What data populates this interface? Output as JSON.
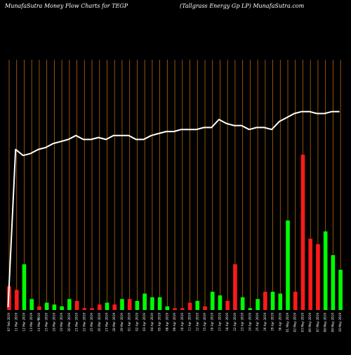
{
  "header": {
    "left": "MunafaSutra  Money Flow  Charts for TEGP",
    "right": "(Tallgrass Energy Gp LP) MunafaSutra.com"
  },
  "colors": {
    "background": "#000000",
    "grid": "#b8680e",
    "up_bar": "#00ff00",
    "down_bar": "#ff1a1a",
    "price_line": "#ffffff",
    "text": "#ffffff"
  },
  "chart_data": {
    "type": "bar",
    "title": "MunafaSutra  Money Flow  Charts for TEGP",
    "subtitle": "(Tallgrass Energy Gp LP) MunafaSutra.com",
    "xlabel": "",
    "ylabel": "",
    "grid": true,
    "x_tick_note": "$",
    "categories": [
      "07 Feb 2019",
      "11 Mar 2019",
      "12 Mar 2019",
      "13 Mar 2019",
      "14 Mar 2019",
      "15 Mar 2019",
      "18 Mar 2019",
      "19 Mar 2019",
      "20 Mar 2019",
      "21 Mar 2019",
      "22 Mar 2019",
      "25 Mar 2019",
      "26 Mar 2019",
      "27 Mar 2019",
      "28 Mar 2019",
      "29 Mar 2019",
      "01 Apr 2019",
      "02 Apr 2019",
      "03 Apr 2019",
      "04 Apr 2019",
      "05 Apr 2019",
      "08 Apr 2019",
      "09 Apr 2019",
      "10 Apr 2019",
      "11 Apr 2019",
      "12 Apr 2019",
      "15 Apr 2019",
      "16 Apr 2019",
      "17 Apr 2019",
      "18 Apr 2019",
      "22 Apr 2019",
      "23 Apr 2019",
      "24 Apr 2019",
      "25 Apr 2019",
      "26 Apr 2019",
      "29 Apr 2019",
      "30 Apr 2019",
      "01 May 2019",
      "02 May 2019",
      "03 May 2019",
      "06 May 2019",
      "07 May 2019",
      "08 May 2019",
      "09 May 2019",
      "10 May 2019"
    ],
    "x_tick_labels": [
      "07 Feb 2019",
      "11 Mar 2019",
      "12 Mar 2019",
      "13 Mar 2019",
      "14 Mar 2019",
      "15 Mar 2019",
      "18 Mar 2019",
      "19 Mar 2019",
      "20 Mar 2019",
      "21 Mar 2019",
      "22 Mar 2019",
      "25 Mar 2019",
      "26 Mar 2019",
      "27 Mar 2019",
      "28 Mar 2019",
      "29 Mar 2019",
      "01 Apr 2019",
      "02 Apr 2019",
      "03 Apr 2019",
      "04 Apr 2019",
      "05 Apr 2019",
      "08 Apr 2019",
      "09 Apr 2019",
      "10 Apr 2019",
      "11 Apr 2019",
      "12 Apr 2019",
      "15 Apr 2019",
      "16 Apr 2019",
      "17 Apr 2019",
      "18 Apr 2019",
      "22 Apr 2019",
      "23 Apr 2019",
      "24 Apr 2019",
      "25 Apr 2019",
      "26 Apr 2019",
      "29 Apr 2019",
      "30 Apr 2019",
      "01 May 2019",
      "02 May 2019",
      "03 May 2019",
      "06 May 2019",
      "07 May 2019",
      "08 May 2019",
      "09 May 2019",
      "10 May 2019"
    ],
    "series": [
      {
        "kind": "money_flow_bars",
        "values": [
          13,
          11,
          25,
          6,
          2,
          4,
          3,
          2,
          6,
          5,
          1,
          1,
          3,
          4,
          3,
          6,
          6,
          5,
          9,
          7,
          7,
          2,
          1,
          1,
          4,
          5,
          2,
          10,
          8,
          5,
          25,
          7,
          1,
          6,
          10,
          10,
          9,
          49,
          10,
          85,
          39,
          36,
          43,
          30,
          22
        ],
        "direction": [
          "down",
          "down",
          "up",
          "up",
          "down",
          "up",
          "up",
          "up",
          "up",
          "down",
          "down",
          "down",
          "down",
          "up",
          "down",
          "up",
          "down",
          "up",
          "up",
          "up",
          "up",
          "up",
          "down",
          "down",
          "down",
          "up",
          "down",
          "up",
          "up",
          "down",
          "down",
          "up",
          "up",
          "up",
          "down",
          "up",
          "up",
          "up",
          "down",
          "down",
          "down",
          "down",
          "up",
          "up",
          "up"
        ]
      },
      {
        "kind": "price_line",
        "values": [
          0,
          79,
          76,
          77,
          79,
          80,
          82,
          83,
          84,
          86,
          84,
          84,
          85,
          84,
          86,
          86,
          86,
          84,
          84,
          86,
          87,
          88,
          88,
          89,
          89,
          89,
          90,
          90,
          94,
          92,
          91,
          91,
          89,
          90,
          90,
          89,
          93,
          95,
          97,
          98,
          98,
          97,
          97,
          98,
          98
        ]
      }
    ],
    "ylim": [
      0,
      100
    ]
  }
}
